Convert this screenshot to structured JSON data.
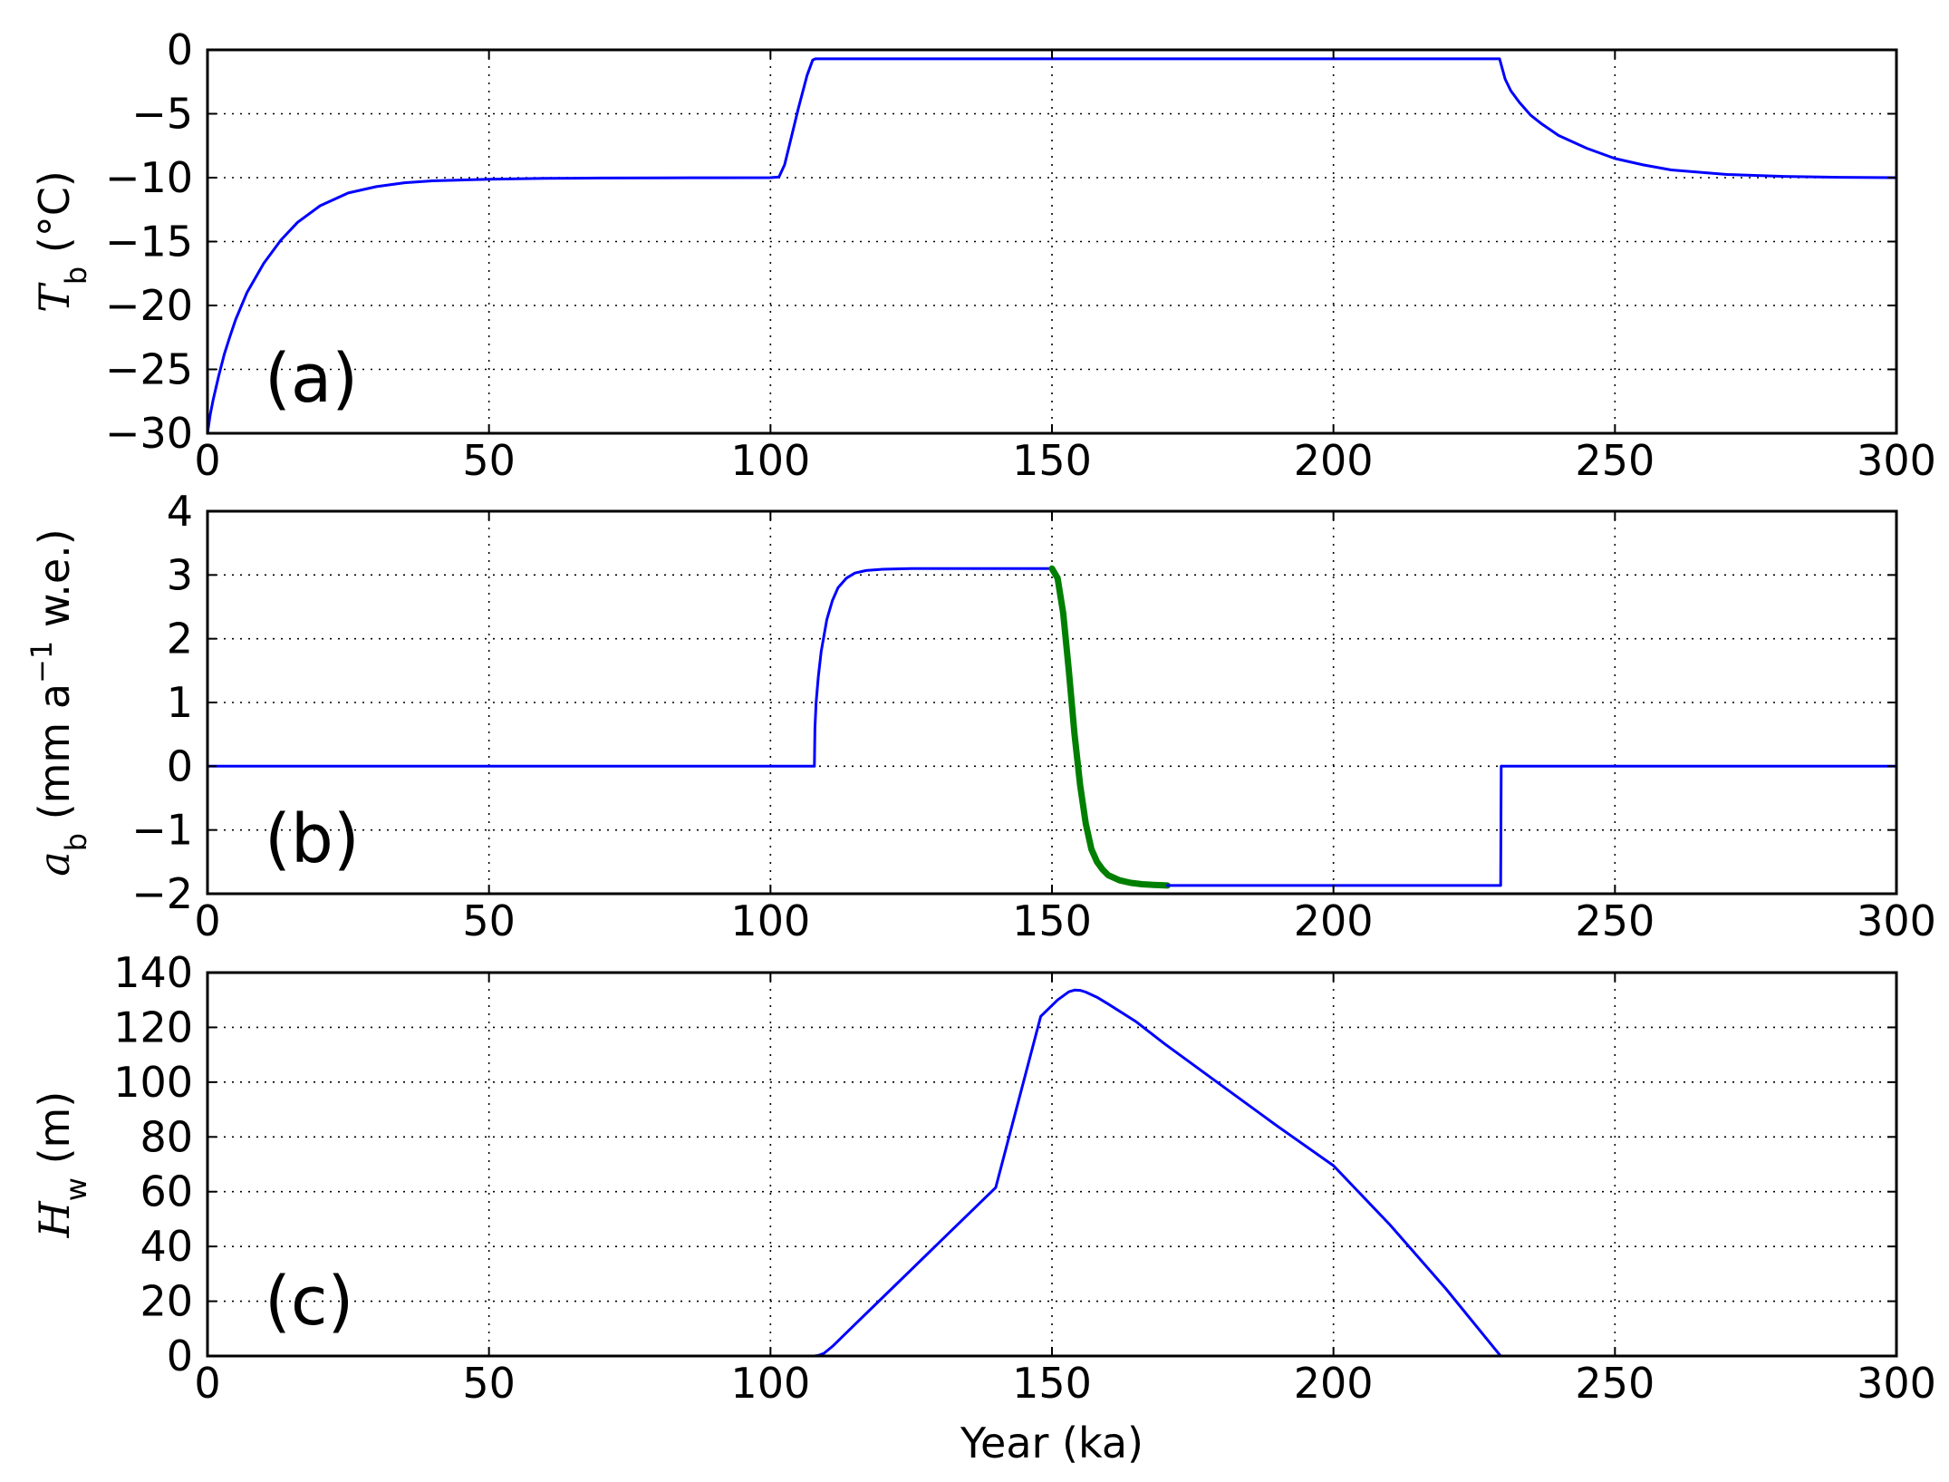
{
  "chart_data": [
    {
      "type": "line",
      "panel_label": "(a)",
      "xlabel": "",
      "ylabel": {
        "symbol": "T",
        "subscript": "b",
        "unit": " (°C)"
      },
      "xlim": [
        0,
        300
      ],
      "ylim": [
        -30,
        0
      ],
      "xticks": [
        0,
        50,
        100,
        150,
        200,
        250,
        300
      ],
      "yticks": [
        0,
        -5,
        -10,
        -15,
        -20,
        -25,
        -30
      ],
      "grid": true,
      "series": [
        {
          "color": "#0000ff",
          "width": 3,
          "x": [
            0,
            0.5,
            1,
            2,
            3,
            4,
            5,
            7,
            10,
            13,
            16,
            20,
            25,
            30,
            35,
            40,
            50,
            60,
            70,
            80,
            90,
            100,
            101.5,
            102.5,
            103.5,
            105,
            106.5,
            107.5,
            108,
            150,
            200,
            229.5,
            230,
            230.5,
            231.5,
            233,
            235,
            237,
            240,
            245,
            250,
            255,
            260,
            270,
            280,
            290,
            300
          ],
          "y": [
            -30,
            -28.5,
            -27.4,
            -25.5,
            -23.8,
            -22.4,
            -21.1,
            -19,
            -16.7,
            -14.9,
            -13.5,
            -12.2,
            -11.2,
            -10.7,
            -10.4,
            -10.25,
            -10.12,
            -10.06,
            -10.03,
            -10.02,
            -10.01,
            -10.0,
            -9.95,
            -9.0,
            -7.2,
            -4.5,
            -2.0,
            -0.8,
            -0.7,
            -0.7,
            -0.7,
            -0.7,
            -1.5,
            -2.3,
            -3.2,
            -4.1,
            -5.1,
            -5.8,
            -6.7,
            -7.7,
            -8.5,
            -9.0,
            -9.4,
            -9.75,
            -9.9,
            -9.97,
            -10.0
          ]
        }
      ]
    },
    {
      "type": "line",
      "panel_label": "(b)",
      "xlabel": "",
      "ylabel": {
        "symbol": "a",
        "subscript": "b",
        "unit_pre": " (mm a",
        "unit_sup": "−1",
        "unit_post": " w.e.)"
      },
      "xlim": [
        0,
        300
      ],
      "ylim": [
        -2,
        4
      ],
      "xticks": [
        0,
        50,
        100,
        150,
        200,
        250,
        300
      ],
      "yticks": [
        4,
        3,
        2,
        1,
        0,
        -1,
        -2
      ],
      "grid": true,
      "series": [
        {
          "color": "#0000ff",
          "width": 3,
          "x": [
            0,
            100,
            107.8,
            107.9,
            108.1,
            108.5,
            109,
            110,
            111,
            112,
            113.5,
            115,
            117,
            120,
            125,
            130,
            150
          ],
          "y": [
            0,
            0,
            0,
            0.6,
            1.0,
            1.4,
            1.8,
            2.3,
            2.6,
            2.8,
            2.95,
            3.03,
            3.07,
            3.09,
            3.1,
            3.1,
            3.1
          ]
        },
        {
          "color": "#007f00",
          "width": 7,
          "x": [
            150,
            151,
            152,
            153,
            154,
            155,
            156,
            157,
            158,
            159,
            160,
            162,
            164,
            166,
            168,
            170.5
          ],
          "y": [
            3.1,
            2.95,
            2.4,
            1.5,
            0.5,
            -0.3,
            -0.9,
            -1.3,
            -1.5,
            -1.62,
            -1.71,
            -1.79,
            -1.83,
            -1.85,
            -1.86,
            -1.87
          ]
        },
        {
          "color": "#0000ff",
          "width": 3,
          "x": [
            170.5,
            229.7,
            229.8,
            300
          ],
          "y": [
            -1.87,
            -1.87,
            0,
            0
          ]
        }
      ]
    },
    {
      "type": "line",
      "panel_label": "(c)",
      "xlabel": "Year (ka)",
      "ylabel": {
        "symbol": "H",
        "subscript": "w",
        "unit": " (m)"
      },
      "xlim": [
        0,
        300
      ],
      "ylim": [
        0,
        140
      ],
      "xticks": [
        0,
        50,
        100,
        150,
        200,
        250,
        300
      ],
      "yticks": [
        140,
        120,
        100,
        80,
        60,
        40,
        20,
        0
      ],
      "grid": true,
      "series": [
        {
          "color": "#0000ff",
          "width": 3,
          "x": [
            0,
            107.8,
            108.5,
            109.5,
            111,
            113,
            116,
            120,
            130,
            140,
            148,
            151,
            153,
            154,
            155,
            156,
            158,
            160,
            165,
            170,
            180,
            190,
            200,
            210,
            220,
            229.7,
            300
          ],
          "y": [
            0,
            0,
            0.2,
            1.0,
            3.5,
            7.5,
            13.5,
            21.5,
            41.5,
            61.5,
            124,
            130,
            133,
            133.6,
            133.5,
            132.9,
            131,
            128.5,
            122,
            114,
            99,
            84,
            69.5,
            48,
            24.5,
            0,
            0
          ]
        }
      ]
    }
  ]
}
